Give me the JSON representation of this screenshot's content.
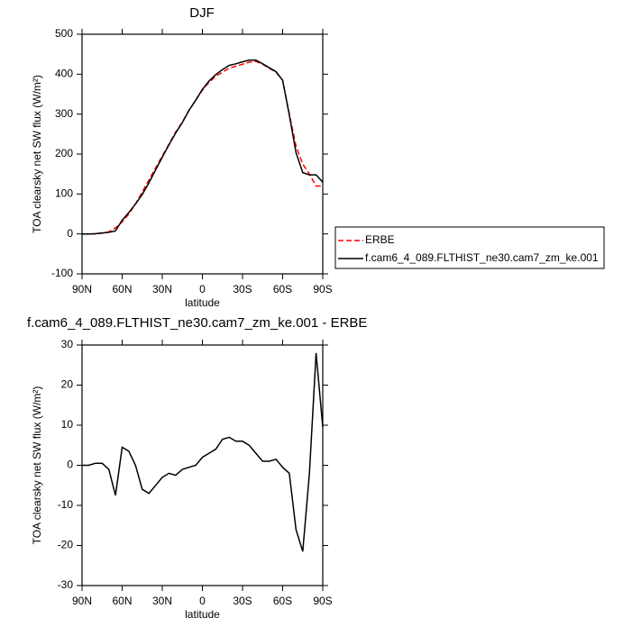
{
  "chart_data": [
    {
      "type": "line",
      "title": "DJF",
      "xlabel": "latitude",
      "ylabel": "TOA clearsky net SW flux (W/m²)",
      "x": [
        90,
        85,
        80,
        75,
        70,
        65,
        60,
        55,
        50,
        45,
        40,
        35,
        30,
        25,
        20,
        15,
        10,
        5,
        0,
        -5,
        -10,
        -15,
        -20,
        -25,
        -30,
        -35,
        -40,
        -45,
        -50,
        -55,
        -60,
        -65,
        -70,
        -75,
        -80,
        -85,
        -90
      ],
      "xlim": [
        90,
        -90
      ],
      "xticks": [
        {
          "value": 90,
          "label": "90N"
        },
        {
          "value": 60,
          "label": "60N"
        },
        {
          "value": 30,
          "label": "30N"
        },
        0,
        {
          "value": -30,
          "label": "30S"
        },
        {
          "value": -60,
          "label": "60S"
        },
        {
          "value": -90,
          "label": "90S"
        }
      ],
      "ylim": [
        -100,
        500
      ],
      "yticks": [
        -100,
        0,
        100,
        200,
        300,
        400,
        500
      ],
      "legend": "right",
      "series": [
        {
          "name": "ERBE",
          "color": "#ff0000",
          "dashed": true,
          "values": [
            0,
            0,
            0,
            2,
            5,
            15,
            30,
            50,
            75,
            105,
            135,
            165,
            195,
            225,
            255,
            280,
            310,
            335,
            360,
            380,
            395,
            405,
            415,
            420,
            425,
            430,
            432,
            425,
            415,
            405,
            385,
            300,
            220,
            175,
            150,
            120,
            120
          ]
        },
        {
          "name": "f.cam6_4_089.FLTHIST_ne30.cam7_zm_ke.001",
          "color": "#000000",
          "dashed": false,
          "values": [
            0,
            0,
            0.5,
            2.5,
            4,
            7.5,
            34.5,
            53.5,
            75,
            99,
            128,
            160,
            192,
            223,
            252.5,
            279,
            309.5,
            335,
            362,
            383,
            399,
            411.5,
            422,
            426,
            431,
            435,
            435,
            426,
            416,
            406.5,
            384.5,
            298,
            204,
            153.5,
            148,
            148,
            129.5
          ]
        }
      ]
    },
    {
      "type": "line",
      "title": "f.cam6_4_089.FLTHIST_ne30.cam7_zm_ke.001 - ERBE",
      "xlabel": "latitude",
      "ylabel": "TOA clearsky net SW flux (W/m²)",
      "x": [
        90,
        85,
        80,
        75,
        70,
        65,
        60,
        55,
        50,
        45,
        40,
        35,
        30,
        25,
        20,
        15,
        10,
        5,
        0,
        -5,
        -10,
        -15,
        -20,
        -25,
        -30,
        -35,
        -40,
        -45,
        -50,
        -55,
        -60,
        -65,
        -70,
        -75,
        -80,
        -85,
        -90
      ],
      "xlim": [
        90,
        -90
      ],
      "xticks": [
        {
          "value": 90,
          "label": "90N"
        },
        {
          "value": 60,
          "label": "60N"
        },
        {
          "value": 30,
          "label": "30N"
        },
        0,
        {
          "value": -30,
          "label": "30S"
        },
        {
          "value": -60,
          "label": "60S"
        },
        {
          "value": -90,
          "label": "90S"
        }
      ],
      "ylim": [
        -30,
        30
      ],
      "yticks": [
        -30,
        -20,
        -10,
        0,
        10,
        20,
        30
      ],
      "color": "#000000",
      "values": [
        0,
        0,
        0.5,
        0.5,
        -1,
        -7.5,
        4.5,
        3.5,
        0,
        -6,
        -7,
        -5,
        -3,
        -2,
        -2.5,
        -1,
        -0.5,
        0,
        2,
        3,
        4,
        6.5,
        7,
        6,
        6,
        5,
        3,
        1,
        1,
        1.5,
        -0.5,
        -2,
        -16,
        -21.5,
        -2,
        28,
        9.5
      ]
    }
  ]
}
